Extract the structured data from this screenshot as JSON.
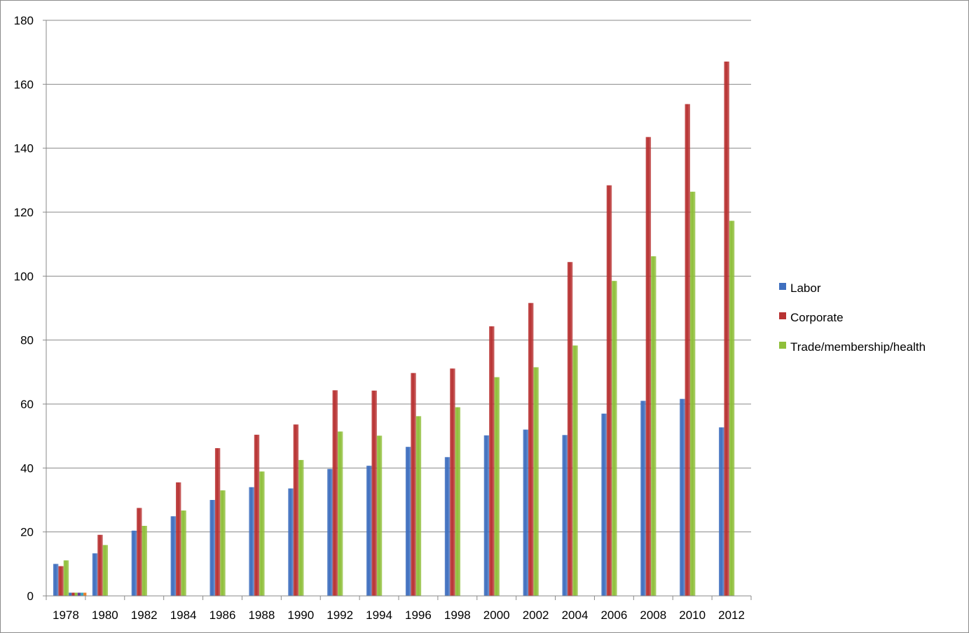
{
  "chart_data": {
    "type": "bar",
    "title": "",
    "xlabel": "",
    "ylabel": "",
    "ylim": [
      0,
      180
    ],
    "yticks": [
      0,
      20,
      40,
      60,
      80,
      100,
      120,
      140,
      160,
      180
    ],
    "grid": true,
    "legend_position": "right",
    "categories": [
      "1978",
      "1980",
      "1982",
      "1984",
      "1986",
      "1988",
      "1990",
      "1992",
      "1994",
      "1996",
      "1998",
      "2000",
      "2002",
      "2004",
      "2006",
      "2008",
      "2010",
      "2012"
    ],
    "series": [
      {
        "name": "Labor",
        "color": "#3f6fbf",
        "values": [
          10,
          13.3,
          20.4,
          24.9,
          30,
          34,
          33.6,
          39.7,
          40.7,
          46.6,
          43.4,
          50.2,
          52,
          50.3,
          57,
          61,
          61.6,
          52.7
        ]
      },
      {
        "name": "Corporate",
        "color": "#b83232",
        "values": [
          9.3,
          19.1,
          27.5,
          35.5,
          46.2,
          50.4,
          53.6,
          64.3,
          64.2,
          69.7,
          71.1,
          84.3,
          91.6,
          104.4,
          128.4,
          143.5,
          153.8,
          167.1
        ]
      },
      {
        "name": "Trade/membership/health",
        "color": "#8fbf3a",
        "values": [
          11.1,
          15.9,
          21.9,
          26.7,
          33,
          38.9,
          42.5,
          51.4,
          50.1,
          56.2,
          59,
          68.4,
          71.5,
          78.3,
          98.5,
          106.2,
          126.4,
          117.3
        ]
      }
    ],
    "extra_1978_markers": [
      {
        "color": "#3f6fbf",
        "value": 1
      },
      {
        "color": "#b83232",
        "value": 1
      },
      {
        "color": "#8fbf3a",
        "value": 1
      },
      {
        "color": "#6a3d9a",
        "value": 1
      },
      {
        "color": "#3aa6c0",
        "value": 1
      },
      {
        "color": "#e8802a",
        "value": 1
      }
    ]
  }
}
